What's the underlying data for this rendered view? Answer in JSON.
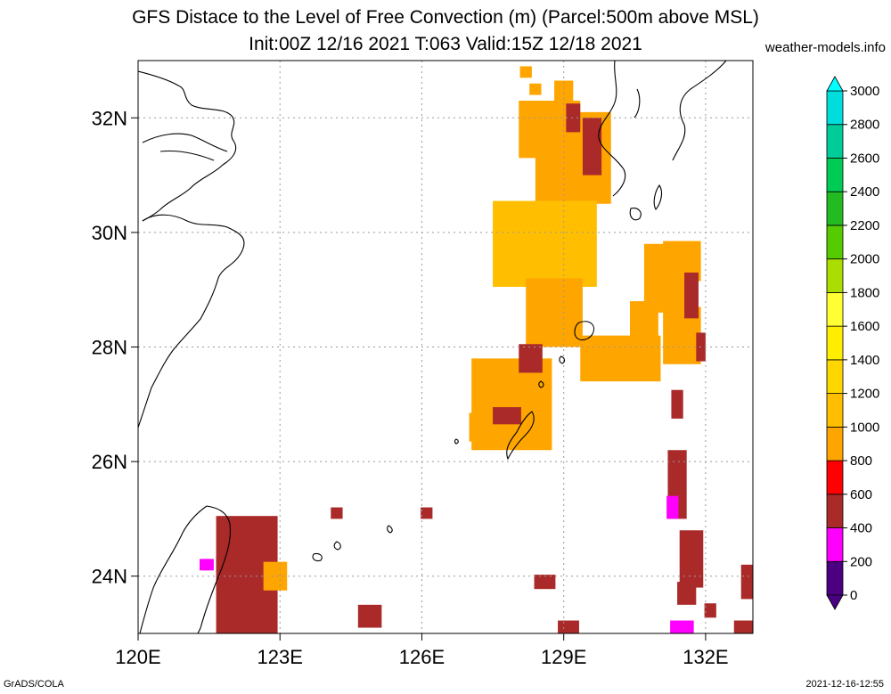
{
  "chart_data": {
    "type": "heatmap",
    "title": "GFS Distace to the Level of Free Convection (m) (Parcel:500m above MSL)",
    "subtitle": "Init:00Z 12/16 2021 T:063 Valid:15Z 12/18 2021",
    "credit": "weather-models.info",
    "footer_left": "GrADS/COLA",
    "footer_right": "2021-12-16-12:55",
    "xlim": [
      120,
      133
    ],
    "ylim": [
      23,
      33
    ],
    "x_ticks": [
      120,
      123,
      126,
      129,
      132
    ],
    "x_tick_labels": [
      "120E",
      "123E",
      "126E",
      "129E",
      "132E"
    ],
    "y_ticks": [
      24,
      26,
      28,
      30,
      32
    ],
    "y_tick_labels": [
      "24N",
      "26N",
      "28N",
      "30N",
      "32N"
    ],
    "grid": true,
    "colorbar": {
      "position": "right",
      "levels": [
        0,
        200,
        400,
        600,
        800,
        1000,
        1200,
        1400,
        1600,
        1800,
        2000,
        2200,
        2400,
        2600,
        2800,
        3000
      ],
      "colors": [
        "#4b0082",
        "#ff00ff",
        "#aa2a2a",
        "#ff0000",
        "#ffa500",
        "#ffbf00",
        "#ffd700",
        "#ffee00",
        "#ffff33",
        "#aadd00",
        "#55cc00",
        "#22bb22",
        "#00cc55",
        "#00cc99",
        "#00dddd",
        "#00ffff"
      ]
    },
    "cells": [
      {
        "lon": 128.2,
        "lat": 32.8,
        "w": 0.25,
        "h": 0.2,
        "value": 800
      },
      {
        "lon": 128.4,
        "lat": 32.5,
        "w": 0.25,
        "h": 0.2,
        "value": 800
      },
      {
        "lon": 129.0,
        "lat": 32.3,
        "w": 0.4,
        "h": 0.7,
        "value": 800
      },
      {
        "lon": 128.7,
        "lat": 31.8,
        "w": 1.3,
        "h": 1.0,
        "value": 900
      },
      {
        "lon": 129.2,
        "lat": 31.3,
        "w": 1.6,
        "h": 1.6,
        "value": 900
      },
      {
        "lon": 128.6,
        "lat": 29.8,
        "w": 2.2,
        "h": 1.5,
        "value": 1000
      },
      {
        "lon": 128.8,
        "lat": 28.6,
        "w": 1.2,
        "h": 1.2,
        "value": 900
      },
      {
        "lon": 127.9,
        "lat": 27.0,
        "w": 1.7,
        "h": 1.6,
        "value": 900
      },
      {
        "lon": 127.3,
        "lat": 26.6,
        "w": 0.6,
        "h": 0.5,
        "value": 800
      },
      {
        "lon": 130.2,
        "lat": 27.8,
        "w": 1.7,
        "h": 0.8,
        "value": 800
      },
      {
        "lon": 130.7,
        "lat": 28.4,
        "w": 0.6,
        "h": 0.8,
        "value": 800
      },
      {
        "lon": 131.2,
        "lat": 29.2,
        "w": 1.0,
        "h": 1.2,
        "value": 800
      },
      {
        "lon": 131.5,
        "lat": 29.5,
        "w": 0.8,
        "h": 0.7,
        "value": 800
      },
      {
        "lon": 131.5,
        "lat": 28.2,
        "w": 0.8,
        "h": 1.0,
        "value": 800
      },
      {
        "lon": 129.6,
        "lat": 31.5,
        "w": 0.4,
        "h": 1.0,
        "value": 500
      },
      {
        "lon": 129.2,
        "lat": 32.0,
        "w": 0.3,
        "h": 0.5,
        "value": 500
      },
      {
        "lon": 128.3,
        "lat": 27.8,
        "w": 0.5,
        "h": 0.5,
        "value": 500
      },
      {
        "lon": 127.8,
        "lat": 26.8,
        "w": 0.6,
        "h": 0.3,
        "value": 500
      },
      {
        "lon": 131.7,
        "lat": 28.9,
        "w": 0.3,
        "h": 0.8,
        "value": 500
      },
      {
        "lon": 131.9,
        "lat": 28.0,
        "w": 0.2,
        "h": 0.5,
        "value": 500
      },
      {
        "lon": 131.4,
        "lat": 27.0,
        "w": 0.25,
        "h": 0.5,
        "value": 500
      },
      {
        "lon": 131.4,
        "lat": 25.6,
        "w": 0.4,
        "h": 1.2,
        "value": 500
      },
      {
        "lon": 131.7,
        "lat": 24.3,
        "w": 0.5,
        "h": 1.0,
        "value": 500
      },
      {
        "lon": 131.6,
        "lat": 23.7,
        "w": 0.4,
        "h": 0.4,
        "value": 500
      },
      {
        "lon": 132.1,
        "lat": 23.4,
        "w": 0.25,
        "h": 0.25,
        "value": 500
      },
      {
        "lon": 132.9,
        "lat": 23.9,
        "w": 0.3,
        "h": 0.6,
        "value": 500
      },
      {
        "lon": 132.8,
        "lat": 23.1,
        "w": 0.4,
        "h": 0.25,
        "value": 500
      },
      {
        "lon": 131.5,
        "lat": 23.1,
        "w": 0.5,
        "h": 0.25,
        "value": 300
      },
      {
        "lon": 131.3,
        "lat": 25.2,
        "w": 0.25,
        "h": 0.4,
        "value": 300
      },
      {
        "lon": 122.3,
        "lat": 24.0,
        "w": 1.3,
        "h": 2.1,
        "value": 500
      },
      {
        "lon": 122.3,
        "lat": 23.4,
        "w": 1.0,
        "h": 0.9,
        "value": 500
      },
      {
        "lon": 121.9,
        "lat": 24.2,
        "w": 0.5,
        "h": 0.25,
        "value": 500
      },
      {
        "lon": 121.5,
        "lat": 24.2,
        "w": 0.2,
        "h": 0.2,
        "value": 300
      },
      {
        "lon": 121.4,
        "lat": 24.2,
        "w": 0.2,
        "h": 0.2,
        "value": 200
      },
      {
        "lon": 122.9,
        "lat": 24.0,
        "w": 0.5,
        "h": 0.5,
        "value": 800
      },
      {
        "lon": 124.2,
        "lat": 25.1,
        "w": 0.25,
        "h": 0.2,
        "value": 500
      },
      {
        "lon": 126.1,
        "lat": 25.1,
        "w": 0.25,
        "h": 0.2,
        "value": 500
      },
      {
        "lon": 124.9,
        "lat": 23.3,
        "w": 0.5,
        "h": 0.4,
        "value": 500
      },
      {
        "lon": 128.6,
        "lat": 23.9,
        "w": 0.45,
        "h": 0.25,
        "value": 500
      },
      {
        "lon": 129.1,
        "lat": 23.1,
        "w": 0.45,
        "h": 0.25,
        "value": 500
      }
    ]
  }
}
